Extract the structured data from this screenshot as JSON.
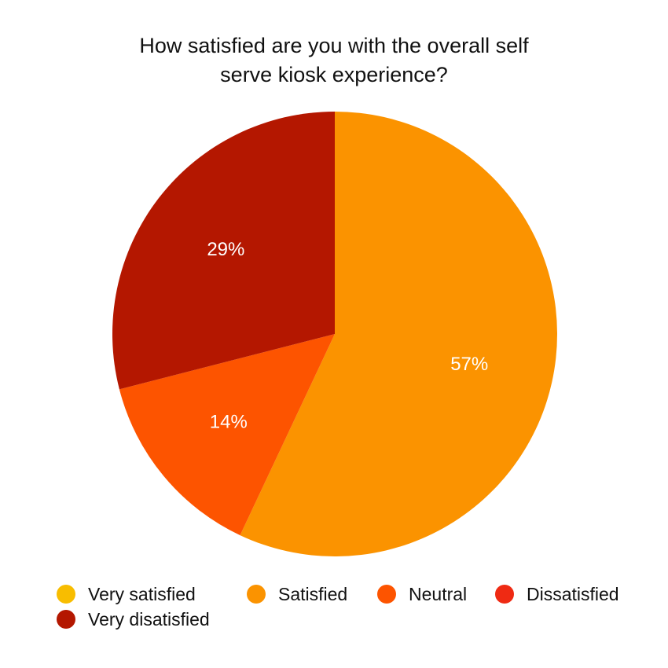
{
  "chart_data": {
    "type": "pie",
    "title_lines": [
      "How satisfied are you with the overall self",
      "serve kiosk experience?"
    ],
    "categories": [
      "Very satisfied",
      "Satisfied",
      "Neutral",
      "Dissatisfied",
      "Very disatisfied"
    ],
    "values": [
      0,
      57,
      14,
      0,
      29
    ],
    "data_labels": [
      "",
      "57%",
      "14%",
      "",
      "29%"
    ],
    "colors": [
      "#f8bd00",
      "#fb9300",
      "#fd5400",
      "#ef2a13",
      "#b41700"
    ],
    "start_angle": "12 o'clock",
    "direction": "clockwise",
    "legend_position": "bottom",
    "legend_rows": [
      [
        0,
        1,
        2,
        3
      ],
      [
        4
      ]
    ]
  }
}
